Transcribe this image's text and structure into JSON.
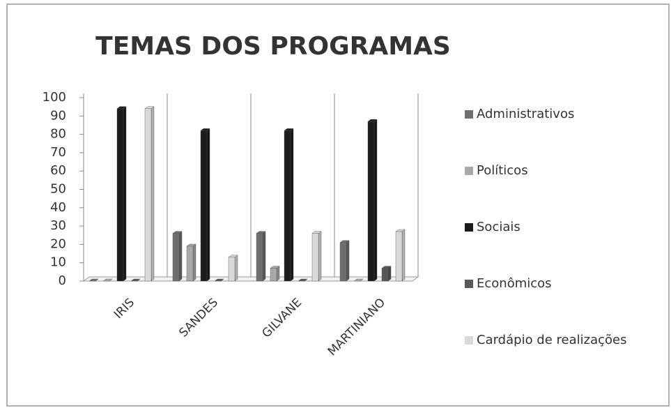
{
  "chart_data": {
    "type": "bar",
    "title": "TEMAS DOS PROGRAMAS",
    "categories": [
      "IRIS",
      "SANDES",
      "GILVANE",
      "MARTINIANO"
    ],
    "series": [
      {
        "name": "Administrativos",
        "color": "#6f6f6f",
        "values": [
          0,
          26,
          26,
          21
        ]
      },
      {
        "name": "Políticos",
        "color": "#a9a9a9",
        "values": [
          0,
          19,
          7,
          0
        ]
      },
      {
        "name": "Sociais",
        "color": "#1c1c1c",
        "values": [
          94,
          82,
          82,
          87
        ]
      },
      {
        "name": "Econômicos",
        "color": "#585858",
        "values": [
          0,
          0,
          0,
          7
        ]
      },
      {
        "name": "Cardápio de realizações",
        "color": "#d9d9d9",
        "values": [
          94,
          13,
          26,
          27
        ]
      }
    ],
    "ylim": [
      0,
      100
    ],
    "yticks": [
      0,
      10,
      20,
      30,
      40,
      50,
      60,
      70,
      80,
      90,
      100
    ],
    "grid": true,
    "legend": "right"
  }
}
